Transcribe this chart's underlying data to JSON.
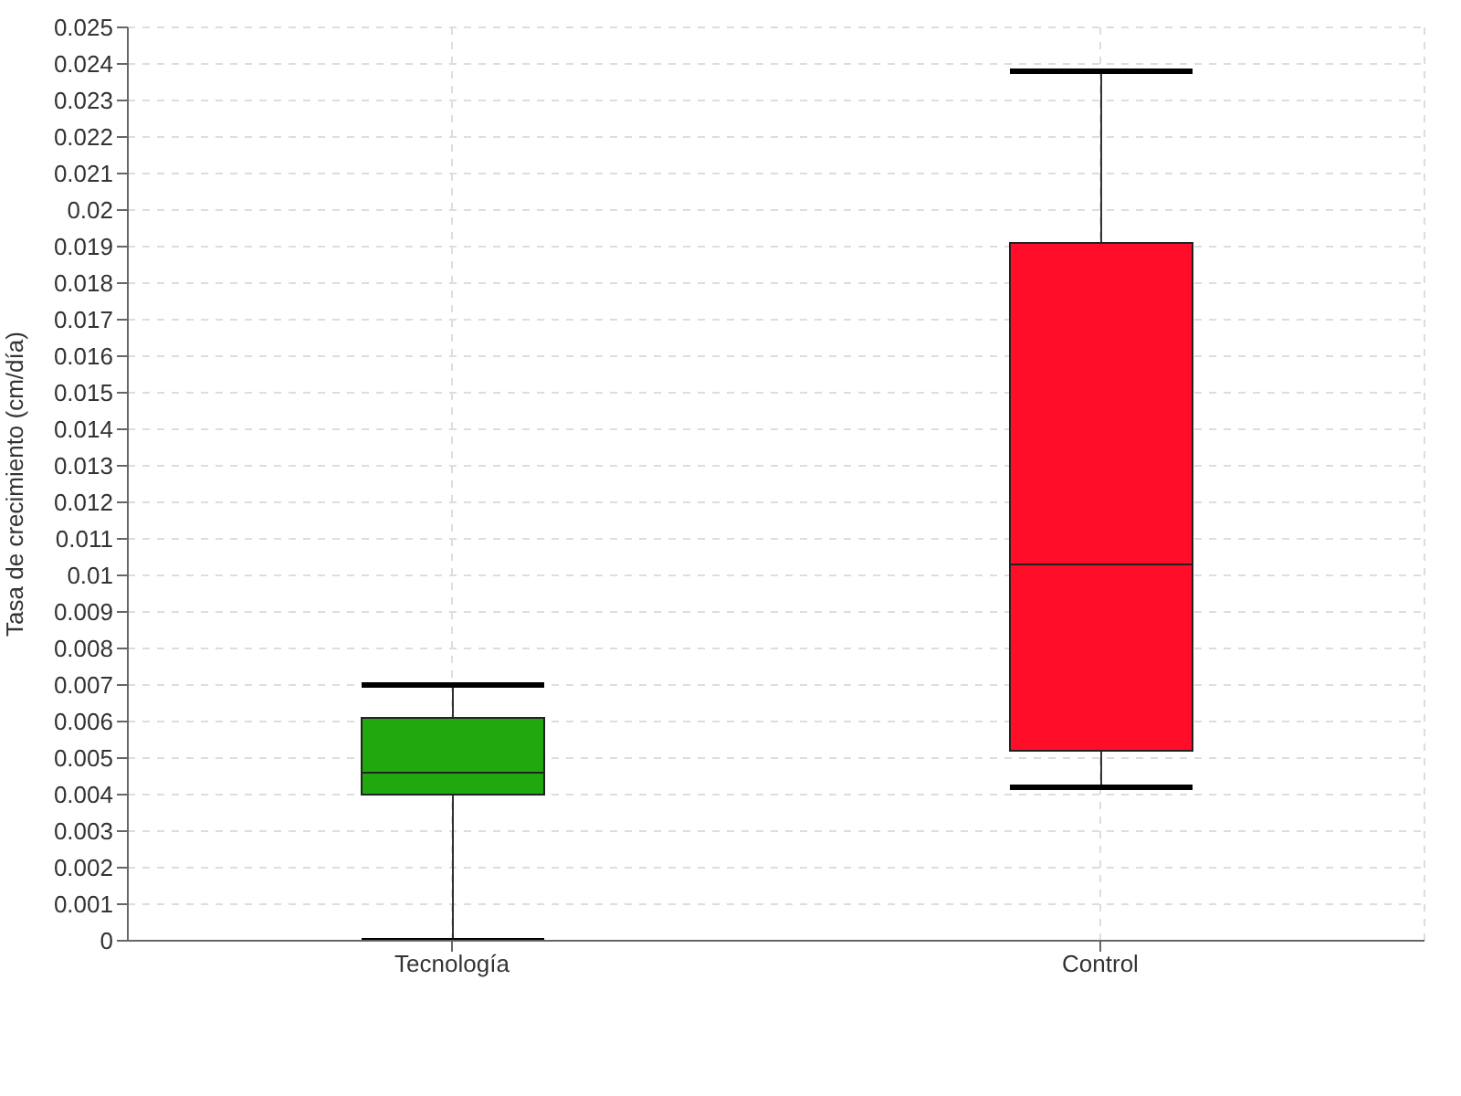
{
  "chart_data": {
    "type": "box",
    "ylabel": "Tasa de crecimiento (cm/día)",
    "categories": [
      "Tecnología",
      "Control"
    ],
    "colors": [
      "#22a80f",
      "#ff0d29"
    ],
    "boxes": [
      {
        "low": 0,
        "q1": 0.004,
        "median": 0.0046,
        "q3": 0.0061,
        "high": 0.007
      },
      {
        "low": 0.0042,
        "q1": 0.0052,
        "median": 0.0103,
        "q3": 0.0191,
        "high": 0.0238
      }
    ],
    "ylim": [
      0,
      0.025
    ],
    "yticks": [
      0,
      0.001,
      0.002,
      0.003,
      0.004,
      0.005,
      0.006,
      0.007,
      0.008,
      0.009,
      0.01,
      0.011,
      0.012,
      0.013,
      0.014,
      0.015,
      0.016,
      0.017,
      0.018,
      0.019,
      0.02,
      0.021,
      0.022,
      0.023,
      0.024,
      0.025
    ],
    "grid": true
  }
}
